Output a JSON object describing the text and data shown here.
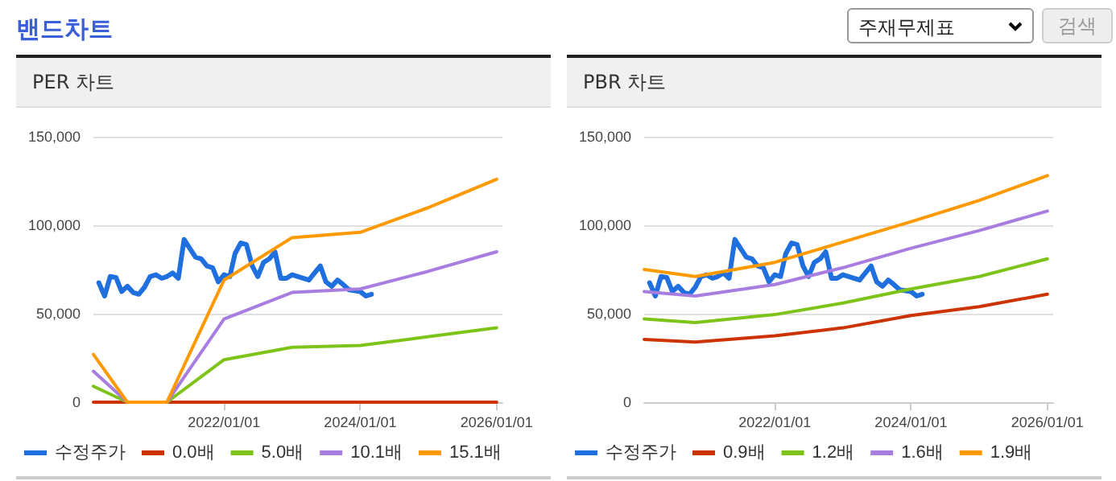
{
  "chart_data": [
    {
      "type": "other",
      "title": "밴드차트",
      "annotations": [
        "주재무제표",
        "검색"
      ]
    },
    {
      "type": "line",
      "title": "PER 차트",
      "marker": "none",
      "line_style": "solid",
      "grid": "y",
      "legend": "bottom",
      "xlim": [
        "2020-02-01",
        "2026-02-01"
      ],
      "xticks": [
        {
          "value": "2022-01-01",
          "label": "2022/01/01"
        },
        {
          "value": "2024-01-01",
          "label": "2024/01/01"
        },
        {
          "value": "2026-01-01",
          "label": "2026/01/01"
        }
      ],
      "ylim": [
        0,
        150000
      ],
      "yticks": [
        {
          "value": 0,
          "label": "0"
        },
        {
          "value": 50000,
          "label": "50,000"
        },
        {
          "value": 100000,
          "label": "100,000"
        },
        {
          "value": 150000,
          "label": "150,000"
        }
      ],
      "series": [
        {
          "name": "수정주가",
          "color": "#1f6fde",
          "x": [
            "2020-03",
            "2020-04",
            "2020-05",
            "2020-06",
            "2020-07",
            "2020-08",
            "2020-09",
            "2020-10",
            "2020-11",
            "2020-12",
            "2021-01",
            "2021-02",
            "2021-03",
            "2021-04",
            "2021-05",
            "2021-06",
            "2021-07",
            "2021-08",
            "2021-09",
            "2021-10",
            "2021-11",
            "2021-12",
            "2022-01",
            "2022-02",
            "2022-03",
            "2022-04",
            "2022-05",
            "2022-06",
            "2022-07",
            "2022-08",
            "2022-09",
            "2022-10",
            "2022-11",
            "2022-12",
            "2023-01",
            "2023-02",
            "2023-04",
            "2023-05",
            "2023-06",
            "2023-07",
            "2023-08",
            "2023-09",
            "2023-10",
            "2023-11",
            "2024-01",
            "2024-02",
            "2024-03"
          ],
          "values": [
            67500,
            60000,
            71000,
            70500,
            62500,
            65500,
            62000,
            61000,
            65000,
            71000,
            72000,
            70000,
            71000,
            73000,
            70000,
            92000,
            87000,
            82000,
            81000,
            77000,
            76000,
            68000,
            72000,
            71000,
            84000,
            90000,
            89000,
            77000,
            71000,
            79000,
            81000,
            85000,
            70000,
            70000,
            72000,
            71000,
            69000,
            73000,
            77000,
            68000,
            65500,
            69000,
            66500,
            63500,
            62500,
            60000,
            61000
          ]
        },
        {
          "name": "0.0배",
          "color": "#cc3300",
          "x": [
            "2020-02",
            "2020-08",
            "2021-03",
            "2022-01",
            "2023-01",
            "2024-01",
            "2025-01",
            "2026-01"
          ],
          "values": [
            0,
            0,
            0,
            0,
            0,
            0,
            0,
            0
          ]
        },
        {
          "name": "5.0배",
          "color": "#7ec31a",
          "x": [
            "2020-02",
            "2020-08",
            "2021-03",
            "2022-01",
            "2023-01",
            "2024-01",
            "2025-01",
            "2026-01"
          ],
          "values": [
            9000,
            0,
            0,
            24000,
            31000,
            32000,
            37000,
            42000
          ]
        },
        {
          "name": "10.1배",
          "color": "#a77de0",
          "x": [
            "2020-02",
            "2020-08",
            "2021-03",
            "2022-01",
            "2023-01",
            "2024-01",
            "2025-01",
            "2026-01"
          ],
          "values": [
            17500,
            0,
            0,
            47000,
            62000,
            64000,
            74000,
            85000
          ]
        },
        {
          "name": "15.1배",
          "color": "#ff9900",
          "x": [
            "2020-02",
            "2020-08",
            "2021-03",
            "2022-01",
            "2023-01",
            "2024-01",
            "2025-01",
            "2026-01"
          ],
          "values": [
            27000,
            0,
            0,
            69000,
            93000,
            96000,
            110000,
            126000
          ]
        }
      ]
    },
    {
      "type": "line",
      "title": "PBR 차트",
      "marker": "none",
      "line_style": "solid",
      "grid": "y",
      "legend": "bottom",
      "xlim": [
        "2020-02-01",
        "2026-02-01"
      ],
      "xticks": [
        {
          "value": "2022-01-01",
          "label": "2022/01/01"
        },
        {
          "value": "2024-01-01",
          "label": "2024/01/01"
        },
        {
          "value": "2026-01-01",
          "label": "2026/01/01"
        }
      ],
      "ylim": [
        0,
        150000
      ],
      "yticks": [
        {
          "value": 0,
          "label": "0"
        },
        {
          "value": 50000,
          "label": "50,000"
        },
        {
          "value": 100000,
          "label": "100,000"
        },
        {
          "value": 150000,
          "label": "150,000"
        }
      ],
      "series": [
        {
          "name": "수정주가",
          "color": "#1f6fde",
          "x": [
            "2020-03",
            "2020-04",
            "2020-05",
            "2020-06",
            "2020-07",
            "2020-08",
            "2020-09",
            "2020-10",
            "2020-11",
            "2020-12",
            "2021-01",
            "2021-02",
            "2021-03",
            "2021-04",
            "2021-05",
            "2021-06",
            "2021-07",
            "2021-08",
            "2021-09",
            "2021-10",
            "2021-11",
            "2021-12",
            "2022-01",
            "2022-02",
            "2022-03",
            "2022-04",
            "2022-05",
            "2022-06",
            "2022-07",
            "2022-08",
            "2022-09",
            "2022-10",
            "2022-11",
            "2022-12",
            "2023-01",
            "2023-02",
            "2023-04",
            "2023-05",
            "2023-06",
            "2023-07",
            "2023-08",
            "2023-09",
            "2023-10",
            "2023-11",
            "2024-01",
            "2024-02",
            "2024-03"
          ],
          "values": [
            67500,
            60000,
            71000,
            70500,
            62500,
            65500,
            62000,
            61000,
            65000,
            71000,
            72000,
            70000,
            71000,
            73000,
            70000,
            92000,
            87000,
            82000,
            81000,
            77000,
            76000,
            68000,
            72000,
            71000,
            84000,
            90000,
            89000,
            77000,
            71000,
            79000,
            81000,
            85000,
            70000,
            70000,
            72000,
            71000,
            69000,
            73000,
            77000,
            68000,
            65500,
            69000,
            66500,
            63500,
            62500,
            60000,
            61000
          ]
        },
        {
          "name": "0.9배",
          "color": "#cc3300",
          "x": [
            "2020-02",
            "2020-11",
            "2022-01",
            "2023-01",
            "2024-01",
            "2025-01",
            "2026-01"
          ],
          "values": [
            35500,
            34000,
            37500,
            42000,
            49000,
            54000,
            61000
          ]
        },
        {
          "name": "1.2배",
          "color": "#7ec31a",
          "x": [
            "2020-02",
            "2020-11",
            "2022-01",
            "2023-01",
            "2024-01",
            "2025-01",
            "2026-01"
          ],
          "values": [
            47000,
            45000,
            49500,
            56000,
            64000,
            71000,
            81000
          ]
        },
        {
          "name": "1.6배",
          "color": "#a77de0",
          "x": [
            "2020-02",
            "2020-11",
            "2022-01",
            "2023-01",
            "2024-01",
            "2025-01",
            "2026-01"
          ],
          "values": [
            62500,
            60000,
            66500,
            76000,
            87000,
            97000,
            108000
          ]
        },
        {
          "name": "1.9배",
          "color": "#ff9900",
          "x": [
            "2020-02",
            "2020-11",
            "2022-01",
            "2023-01",
            "2024-01",
            "2025-01",
            "2026-01"
          ],
          "values": [
            75000,
            71000,
            79000,
            90500,
            102000,
            114000,
            128000
          ]
        }
      ]
    }
  ]
}
